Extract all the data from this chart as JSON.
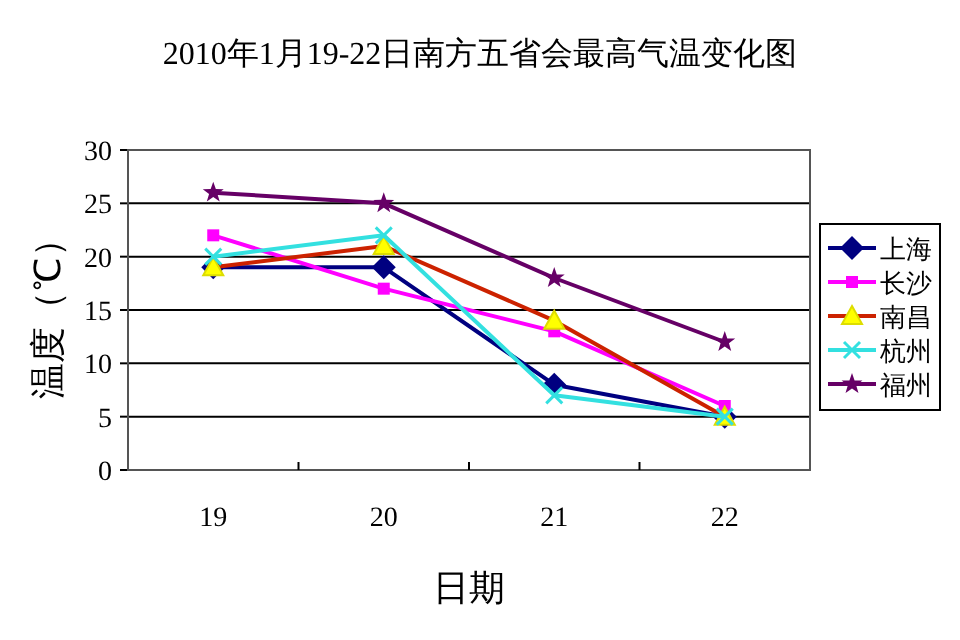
{
  "chart_data": {
    "type": "line",
    "title": "2010年1月19-22日南方五省会最高气温变化图",
    "xlabel": "日期",
    "ylabel": "温度（℃）",
    "categories": [
      "19",
      "20",
      "21",
      "22"
    ],
    "ylim": [
      0,
      30
    ],
    "yticks": [
      0,
      5,
      10,
      15,
      20,
      25,
      30
    ],
    "grid": "y",
    "legend": "right",
    "series": [
      {
        "name": "上海",
        "color": "#000080",
        "marker": "diamond",
        "values": [
          19,
          19,
          8,
          5
        ]
      },
      {
        "name": "长沙",
        "color": "#ff00ff",
        "marker": "square",
        "values": [
          22,
          17,
          13,
          6
        ]
      },
      {
        "name": "南昌",
        "color": "#cc2200",
        "marker": "triangle",
        "values": [
          19,
          21,
          14,
          5
        ]
      },
      {
        "name": "杭州",
        "color": "#33e0e0",
        "marker": "cross",
        "values": [
          20,
          22,
          7,
          5
        ]
      },
      {
        "name": "福州",
        "color": "#660066",
        "marker": "star",
        "values": [
          26,
          25,
          18,
          12
        ]
      }
    ]
  }
}
